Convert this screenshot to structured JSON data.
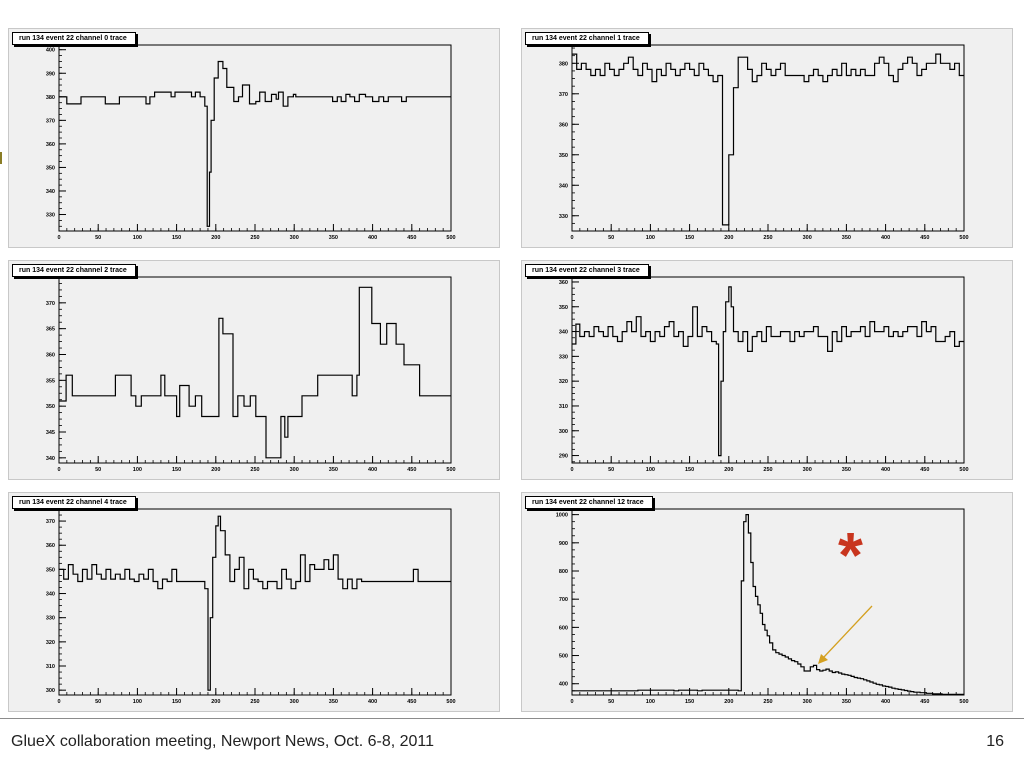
{
  "footer": {
    "text": "GlueX collaboration meeting, Newport News, Oct. 6-8, 2011",
    "page": "16"
  },
  "annotation": {
    "star": "*",
    "star_color": "#c8351e",
    "arrow_color": "#d4a020"
  },
  "chart_data": [
    {
      "type": "line",
      "title": "run 134 event 22 channel 0 trace",
      "xlim": [
        0,
        500
      ],
      "ylim": [
        323,
        402
      ],
      "yticks": [
        330,
        340,
        350,
        360,
        370,
        380,
        390,
        400
      ],
      "yticklabels": [
        "330",
        "340",
        "350",
        "360",
        "370",
        "380",
        "390",
        "400"
      ],
      "xticks": [
        0,
        50,
        100,
        150,
        200,
        250,
        300,
        350,
        400,
        450,
        500
      ],
      "x": [
        0,
        10,
        28,
        59,
        77,
        111,
        116,
        122,
        143,
        148,
        169,
        174,
        180,
        186,
        189,
        192,
        194,
        198,
        203,
        209,
        214,
        223,
        229,
        234,
        243,
        251,
        256,
        263,
        271,
        277,
        280,
        286,
        292,
        299,
        302,
        308,
        349,
        355,
        360,
        366,
        371,
        377,
        383,
        391,
        400,
        408,
        414,
        420,
        431,
        437,
        443,
        448,
        454,
        500
      ],
      "y": [
        380,
        377,
        380,
        377,
        380,
        377,
        380,
        382,
        380,
        382,
        380,
        382,
        380,
        376,
        325,
        348,
        370,
        388,
        395,
        392,
        384,
        378,
        380,
        385,
        377,
        378,
        382,
        378,
        381,
        379,
        382,
        376,
        380,
        381,
        380,
        380,
        378,
        380,
        378,
        381,
        380,
        378,
        381,
        380,
        378,
        380,
        378,
        380,
        380,
        378,
        380,
        380,
        380,
        380
      ]
    },
    {
      "type": "line",
      "title": "run 134 event 22 channel 1 trace",
      "xlim": [
        0,
        500
      ],
      "ylim": [
        325,
        386
      ],
      "yticks": [
        330,
        340,
        350,
        360,
        370,
        380
      ],
      "yticklabels": [
        "330",
        "340",
        "350",
        "360",
        "370",
        "380"
      ],
      "xticks": [
        0,
        50,
        100,
        150,
        200,
        250,
        300,
        350,
        400,
        450,
        500
      ],
      "x": [
        0,
        6,
        12,
        18,
        24,
        30,
        36,
        42,
        48,
        54,
        60,
        66,
        72,
        78,
        84,
        90,
        96,
        102,
        108,
        114,
        120,
        126,
        132,
        138,
        144,
        150,
        156,
        162,
        168,
        174,
        180,
        186,
        192,
        200,
        206,
        212,
        218,
        224,
        230,
        236,
        242,
        248,
        254,
        260,
        266,
        272,
        278,
        284,
        290,
        296,
        302,
        308,
        314,
        320,
        326,
        332,
        338,
        344,
        350,
        356,
        362,
        368,
        374,
        380,
        386,
        392,
        398,
        404,
        410,
        416,
        422,
        428,
        434,
        440,
        446,
        452,
        458,
        464,
        470,
        476,
        482,
        488,
        494,
        500
      ],
      "y": [
        383,
        378,
        380,
        378,
        376,
        378,
        376,
        380,
        378,
        376,
        378,
        380,
        382,
        378,
        376,
        380,
        378,
        374,
        378,
        376,
        380,
        378,
        376,
        378,
        380,
        378,
        376,
        380,
        378,
        376,
        374,
        376,
        327,
        350,
        372,
        382,
        382,
        378,
        374,
        376,
        380,
        378,
        376,
        378,
        380,
        376,
        376,
        376,
        376,
        374,
        376,
        378,
        376,
        374,
        376,
        378,
        376,
        380,
        376,
        378,
        376,
        378,
        376,
        376,
        380,
        382,
        380,
        376,
        374,
        378,
        380,
        382,
        380,
        376,
        378,
        380,
        380,
        383,
        380,
        380,
        378,
        380,
        376,
        376
      ]
    },
    {
      "type": "line",
      "title": "run 134 event 22 channel 2 trace",
      "xlim": [
        0,
        500
      ],
      "ylim": [
        339,
        375
      ],
      "yticks": [
        340,
        345,
        350,
        355,
        360,
        365,
        370
      ],
      "yticklabels": [
        "340",
        "345",
        "350",
        "355",
        "360",
        "365",
        "370"
      ],
      "xticks": [
        0,
        50,
        100,
        150,
        200,
        250,
        300,
        350,
        400,
        450,
        500
      ],
      "x": [
        0,
        9,
        17,
        40,
        62,
        72,
        92,
        98,
        105,
        123,
        130,
        135,
        150,
        154,
        166,
        174,
        182,
        199,
        204,
        209,
        222,
        228,
        236,
        244,
        251,
        264,
        280,
        283,
        288,
        292,
        298,
        310,
        316,
        330,
        349,
        374,
        380,
        383,
        399,
        410,
        418,
        430,
        440,
        460,
        470,
        500
      ],
      "y": [
        351,
        356,
        352,
        352,
        352,
        356,
        352,
        350,
        352,
        352,
        356,
        352,
        348,
        354,
        350,
        352,
        348,
        348,
        367,
        364,
        348,
        352,
        350,
        352,
        348,
        340,
        340,
        348,
        344,
        348,
        348,
        352,
        352,
        356,
        356,
        352,
        356,
        373,
        366,
        362,
        366,
        362,
        358,
        352,
        352,
        352
      ]
    },
    {
      "type": "line",
      "title": "run 134 event 22 channel 3 trace",
      "xlim": [
        0,
        500
      ],
      "ylim": [
        287,
        362
      ],
      "yticks": [
        290,
        300,
        310,
        320,
        330,
        340,
        350,
        360
      ],
      "yticklabels": [
        "290",
        "300",
        "310",
        "320",
        "330",
        "340",
        "350",
        "360"
      ],
      "xticks": [
        0,
        50,
        100,
        150,
        200,
        250,
        300,
        350,
        400,
        450,
        500
      ],
      "x": [
        0,
        5,
        10,
        16,
        22,
        28,
        34,
        40,
        46,
        52,
        58,
        64,
        70,
        76,
        82,
        88,
        94,
        100,
        106,
        112,
        118,
        124,
        130,
        136,
        142,
        148,
        154,
        160,
        166,
        172,
        178,
        184,
        187,
        190,
        193,
        196,
        200,
        203,
        206,
        212,
        218,
        224,
        230,
        236,
        242,
        248,
        254,
        260,
        266,
        272,
        278,
        284,
        290,
        296,
        302,
        308,
        314,
        320,
        326,
        332,
        338,
        344,
        350,
        356,
        362,
        368,
        374,
        380,
        386,
        392,
        398,
        404,
        410,
        416,
        422,
        428,
        434,
        440,
        446,
        452,
        458,
        464,
        470,
        476,
        482,
        488,
        494,
        500
      ],
      "y": [
        335,
        343,
        338,
        340,
        338,
        342,
        340,
        338,
        342,
        338,
        336,
        340,
        344,
        340,
        346,
        338,
        340,
        336,
        340,
        338,
        342,
        344,
        338,
        340,
        334,
        338,
        350,
        338,
        342,
        340,
        336,
        335,
        290,
        320,
        340,
        352,
        358,
        350,
        340,
        336,
        340,
        332,
        338,
        340,
        336,
        342,
        338,
        338,
        340,
        340,
        336,
        340,
        338,
        340,
        340,
        342,
        338,
        338,
        332,
        340,
        336,
        342,
        338,
        340,
        340,
        342,
        338,
        344,
        340,
        340,
        342,
        338,
        340,
        338,
        340,
        342,
        342,
        338,
        344,
        340,
        342,
        336,
        336,
        338,
        340,
        334,
        336,
        336
      ]
    },
    {
      "type": "line",
      "title": "run 134 event 22 channel 4 trace",
      "xlim": [
        0,
        500
      ],
      "ylim": [
        298,
        375
      ],
      "yticks": [
        300,
        310,
        320,
        330,
        340,
        350,
        360,
        370
      ],
      "yticklabels": [
        "300",
        "310",
        "320",
        "330",
        "340",
        "350",
        "360",
        "370"
      ],
      "xticks": [
        0,
        50,
        100,
        150,
        200,
        250,
        300,
        350,
        400,
        450,
        500
      ],
      "x": [
        0,
        6,
        12,
        18,
        24,
        30,
        36,
        42,
        48,
        54,
        60,
        66,
        72,
        78,
        84,
        90,
        96,
        102,
        108,
        114,
        120,
        126,
        132,
        138,
        144,
        150,
        156,
        162,
        168,
        174,
        180,
        186,
        190,
        193,
        196,
        200,
        203,
        206,
        212,
        218,
        224,
        230,
        236,
        242,
        248,
        254,
        260,
        266,
        272,
        278,
        284,
        290,
        296,
        302,
        308,
        314,
        320,
        326,
        332,
        338,
        344,
        350,
        356,
        362,
        368,
        374,
        380,
        386,
        392,
        398,
        404,
        410,
        416,
        422,
        428,
        434,
        440,
        446,
        452,
        458,
        464,
        470,
        476,
        482,
        488,
        494,
        500
      ],
      "y": [
        350,
        346,
        352,
        348,
        345,
        350,
        346,
        352,
        348,
        346,
        350,
        346,
        348,
        346,
        350,
        346,
        345,
        348,
        346,
        350,
        345,
        342,
        346,
        345,
        350,
        345,
        345,
        345,
        345,
        345,
        345,
        342,
        300,
        330,
        355,
        368,
        372,
        366,
        356,
        345,
        350,
        355,
        342,
        350,
        346,
        345,
        342,
        345,
        345,
        342,
        350,
        346,
        342,
        345,
        356,
        345,
        352,
        350,
        350,
        354,
        350,
        356,
        346,
        342,
        346,
        342,
        346,
        345,
        345,
        345,
        345,
        345,
        345,
        345,
        345,
        345,
        345,
        345,
        350,
        345,
        345,
        345,
        345,
        345,
        345,
        345,
        345
      ]
    },
    {
      "type": "line",
      "title": "run 134 event 22 channel 12 trace",
      "xlim": [
        0,
        500
      ],
      "ylim": [
        360,
        1020
      ],
      "yticks": [
        400,
        500,
        600,
        700,
        800,
        900,
        1000
      ],
      "yticklabels": [
        "400",
        "500",
        "600",
        "700",
        "800",
        "900",
        "1000"
      ],
      "xticks": [
        0,
        50,
        100,
        150,
        200,
        250,
        300,
        350,
        400,
        450,
        500
      ],
      "x": [
        0,
        78,
        84,
        130,
        136,
        160,
        166,
        212,
        216,
        219,
        222,
        225,
        228,
        231,
        234,
        237,
        240,
        243,
        246,
        249,
        252,
        256,
        260,
        264,
        268,
        272,
        276,
        280,
        284,
        288,
        292,
        296,
        300,
        304,
        308,
        312,
        316,
        320,
        324,
        328,
        332,
        336,
        340,
        344,
        348,
        352,
        356,
        360,
        364,
        368,
        372,
        376,
        380,
        384,
        388,
        392,
        396,
        400,
        404,
        408,
        412,
        416,
        420,
        424,
        428,
        432,
        436,
        440,
        444,
        448,
        452,
        456,
        460,
        464,
        468,
        472,
        476,
        480,
        484,
        488,
        492,
        496,
        500
      ],
      "y": [
        375,
        375,
        377,
        375,
        377,
        375,
        377,
        375,
        765,
        975,
        1000,
        935,
        830,
        745,
        710,
        680,
        650,
        610,
        590,
        570,
        545,
        520,
        510,
        505,
        500,
        495,
        488,
        482,
        478,
        470,
        460,
        445,
        445,
        460,
        465,
        450,
        445,
        448,
        452,
        445,
        440,
        442,
        438,
        434,
        432,
        430,
        426,
        422,
        420,
        418,
        414,
        410,
        406,
        402,
        398,
        396,
        392,
        390,
        388,
        384,
        382,
        380,
        378,
        376,
        374,
        372,
        370,
        370,
        368,
        368,
        366,
        366,
        364,
        364,
        364,
        362,
        362,
        362,
        362,
        362,
        362,
        362,
        362
      ]
    }
  ]
}
